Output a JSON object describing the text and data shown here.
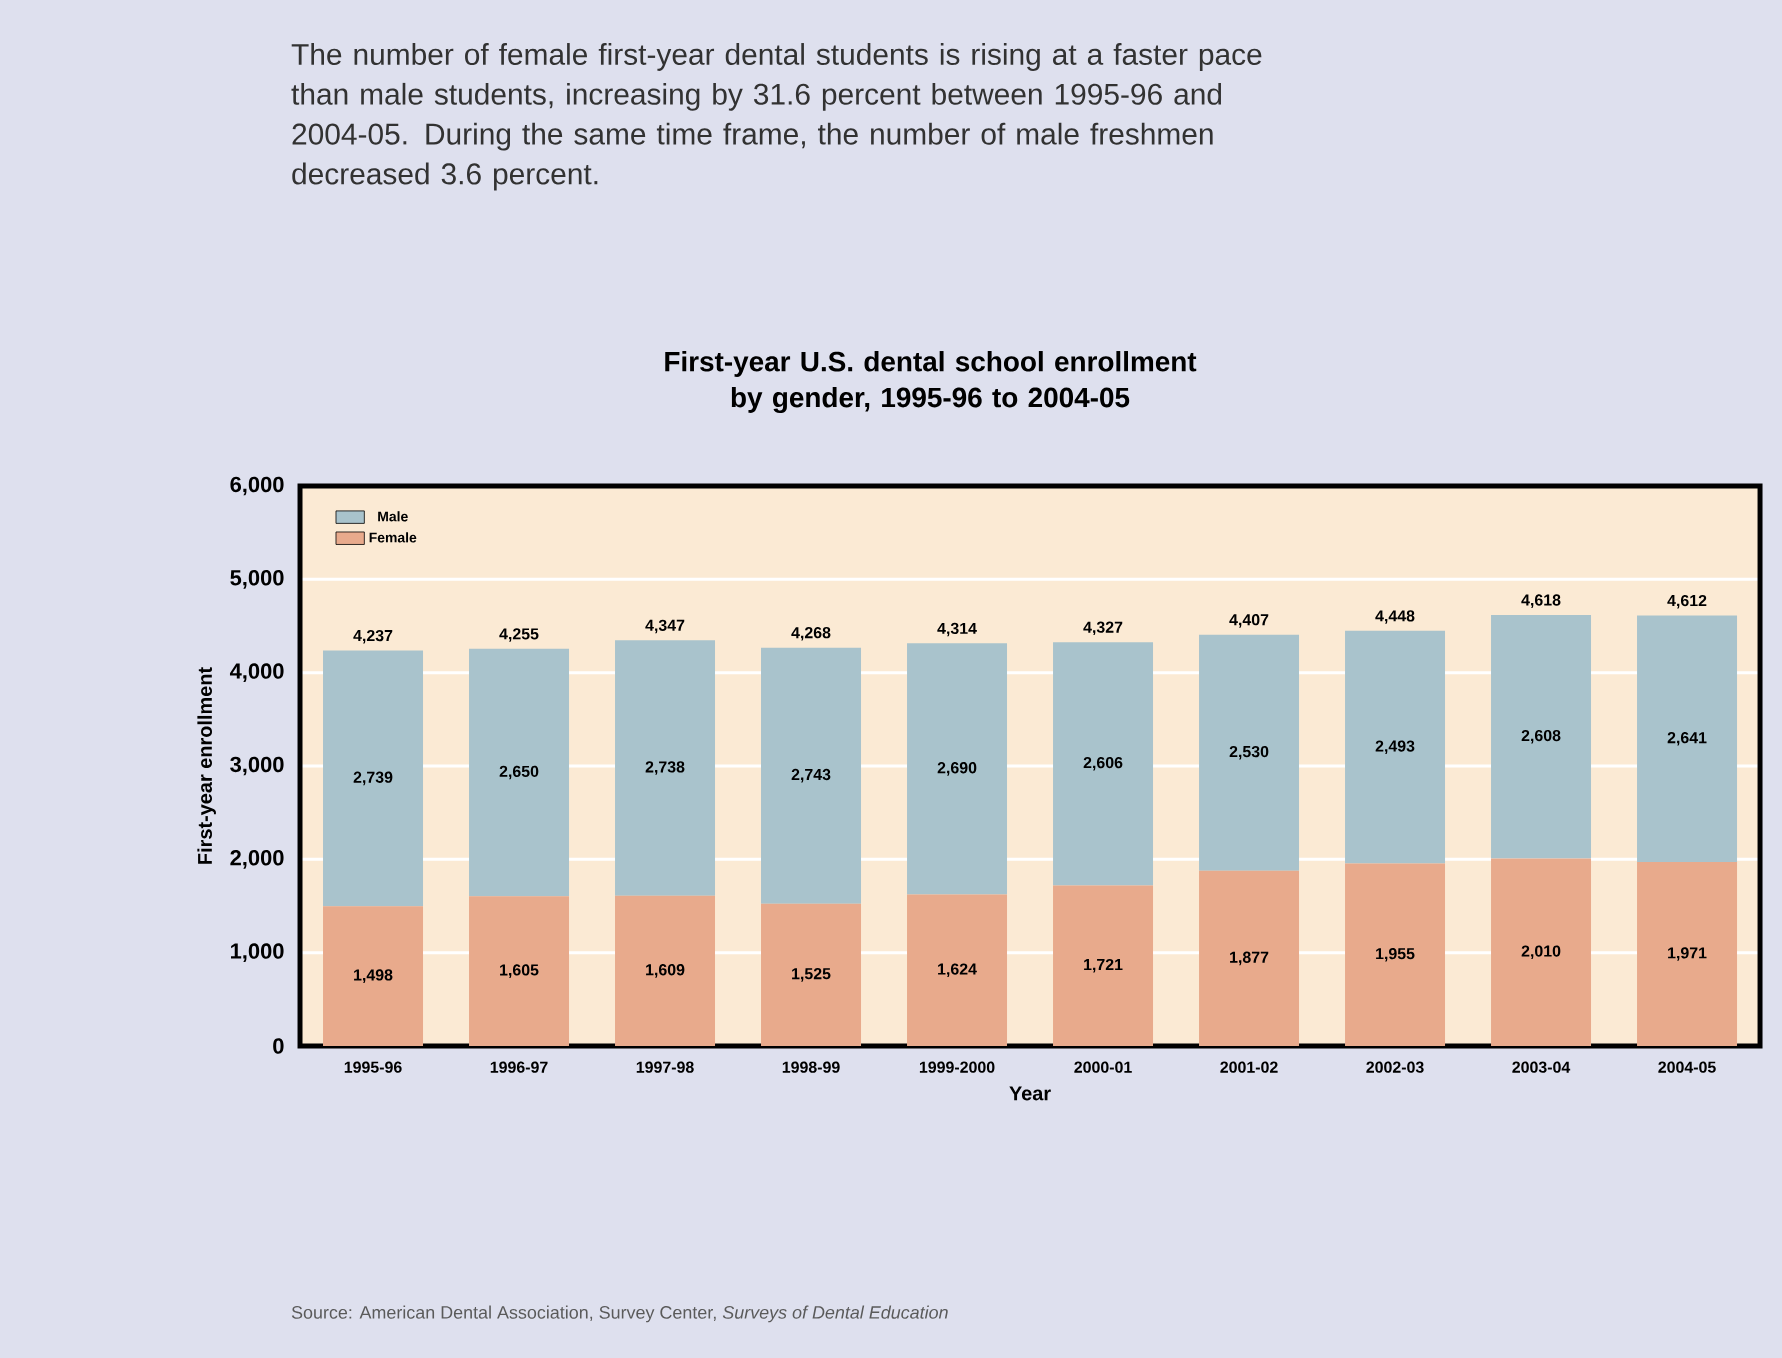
{
  "chart_data": {
    "type": "bar",
    "stacked": true,
    "title": "First-year U.S. dental school enrollment by gender, 1995-96 to 2004-05",
    "xlabel": "Year",
    "ylabel": "First-year enrollment",
    "annotations": [
      "The number of female first-year dental students is rising at a faster pace than male students, increasing by 31.6 percent between 1995-96 and 2004-05. During the same time frame, the number of male freshmen decreased 3.6 percent.",
      "Source: American Dental Association, Survey Center, *Surveys of Dental Education*"
    ],
    "categories": [
      "1995-96",
      "1996-97",
      "1997-98",
      "1998-99",
      "1999-2000",
      "2000-01",
      "2001-02",
      "2002-03",
      "2003-04",
      "2004-05"
    ],
    "series": [
      {
        "name": "Female",
        "color": "#e8aa8c",
        "values": [
          1498,
          1605,
          1609,
          1525,
          1624,
          1721,
          1877,
          1955,
          2010,
          1971
        ],
        "value_labels": [
          "1,498",
          "1,605",
          "1,609",
          "1,525",
          "1,624",
          "1,721",
          "1,877",
          "1,955",
          "2,010",
          "1,971"
        ]
      },
      {
        "name": "Male",
        "color": "#a9c3cc",
        "values": [
          2739,
          2650,
          2738,
          2743,
          2690,
          2606,
          2530,
          2493,
          2608,
          2641
        ],
        "value_labels": [
          "2,739",
          "2,650",
          "2,738",
          "2,743",
          "2,690",
          "2,606",
          "2,530",
          "2,493",
          "2,608",
          "2,641"
        ]
      }
    ],
    "totals": [
      "4,237",
      "4,255",
      "4,347",
      "4,268",
      "4,314",
      "4,327",
      "4,407",
      "4,448",
      "4,618",
      "4,612"
    ],
    "ylim": [
      0,
      6000
    ],
    "yticks": [
      0,
      {
        "value": 1000,
        "label": "1,000"
      },
      {
        "value": 2000,
        "label": "2,000"
      },
      {
        "value": 3000,
        "label": "3,000"
      },
      {
        "value": 4000,
        "label": "4,000"
      },
      {
        "value": 5000,
        "label": "5,000"
      },
      {
        "value": 6000,
        "label": "6,000"
      }
    ],
    "grid": "y",
    "legend": "top left"
  }
}
